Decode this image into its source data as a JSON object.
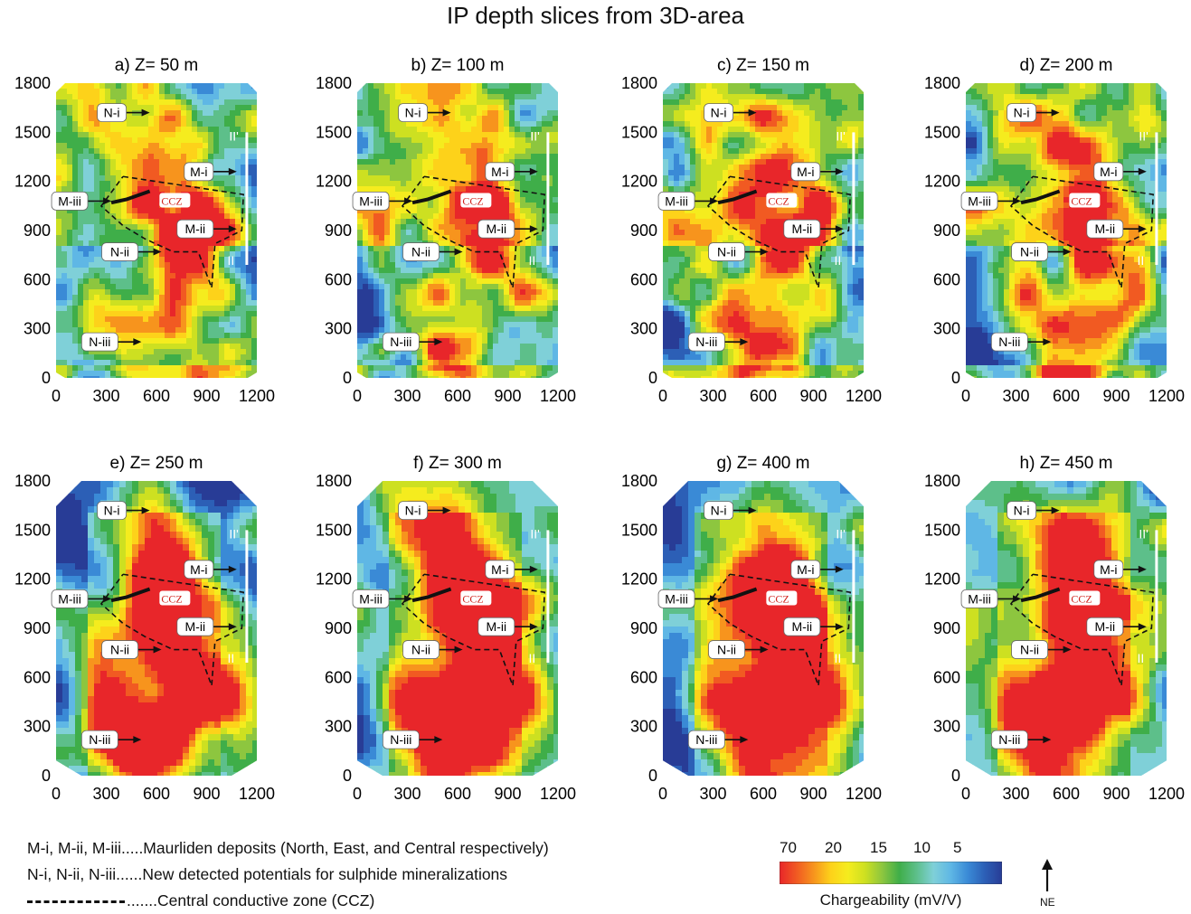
{
  "title": "IP depth slices from 3D-area",
  "chart_data": {
    "type": "heatmap",
    "xlim": [
      0,
      1200
    ],
    "ylim": [
      0,
      1800
    ],
    "xticks": [
      0,
      300,
      600,
      900,
      1200
    ],
    "yticks": [
      0,
      300,
      600,
      900,
      1200,
      1500,
      1800
    ],
    "panels": [
      {
        "title": "a) Z= 50 m"
      },
      {
        "title": "b) Z= 100 m"
      },
      {
        "title": "c) Z= 150 m"
      },
      {
        "title": "d) Z= 200 m"
      },
      {
        "title": "e) Z= 250 m"
      },
      {
        "title": "f) Z= 300 m"
      },
      {
        "title": "g) Z= 400 m"
      },
      {
        "title": "h) Z= 450 m"
      }
    ],
    "annotations": [
      {
        "label": "N-i",
        "x": 560,
        "y": 1620
      },
      {
        "label": "M-i",
        "x": 1080,
        "y": 1260
      },
      {
        "label": "M-iii",
        "x": 330,
        "y": 1080
      },
      {
        "label": "CCZ",
        "x": 710,
        "y": 1085
      },
      {
        "label": "M-ii",
        "x": 1080,
        "y": 910
      },
      {
        "label": "N-ii",
        "x": 630,
        "y": 770
      },
      {
        "label": "N-iii",
        "x": 510,
        "y": 220
      },
      {
        "label": "II'",
        "x": 1110,
        "y": 1450
      },
      {
        "label": "II",
        "x": 1100,
        "y": 690
      }
    ],
    "colorbar": {
      "label": "Chargeability (mV/V)",
      "ticks": [
        "70",
        "20",
        "15",
        "10",
        "5"
      ],
      "colors": [
        "#e8262a",
        "#f15a22",
        "#f7941d",
        "#fdd21a",
        "#f5ec1e",
        "#cde021",
        "#8dc63f",
        "#3fae49",
        "#5dbf8a",
        "#7fd0d8",
        "#5fb7e5",
        "#3a8ad6",
        "#2c5fb6",
        "#283c96"
      ]
    }
  },
  "legend": {
    "deposits": "M-i, M-ii, M-iii.....Maurliden deposits (North, East, and Central respectively)",
    "potentials": "N-i, N-ii, N-iii......New detected potentials for sulphide mineralizations",
    "ccz": ".......Central conductive zone (CCZ)"
  },
  "north_arrow_label": "NE"
}
